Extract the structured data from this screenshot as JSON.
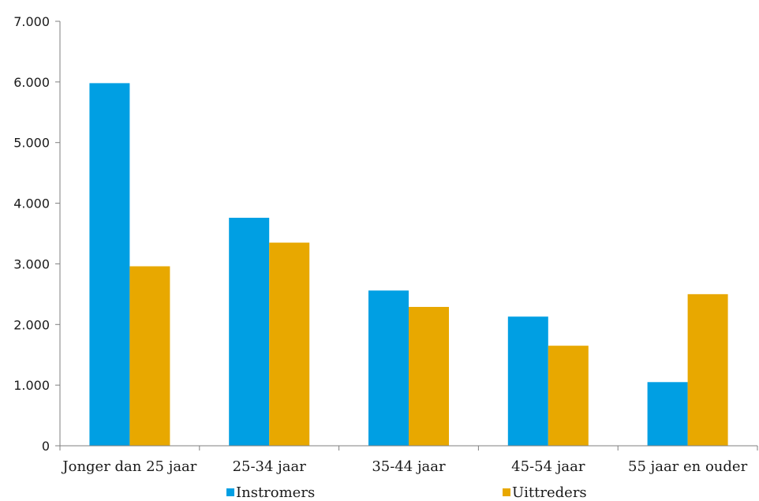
{
  "chart_data": {
    "type": "bar",
    "title": "",
    "xlabel": "",
    "ylabel": "",
    "categories": [
      "Jonger dan 25 jaar",
      "25-34 jaar",
      "35-44 jaar",
      "45-54 jaar",
      "55 jaar en ouder"
    ],
    "series": [
      {
        "name": "Instromers",
        "color": "#009fe3",
        "values": [
          5980,
          3760,
          2560,
          2130,
          1050
        ]
      },
      {
        "name": "Uittreders",
        "color": "#e8a800",
        "values": [
          2960,
          3350,
          2290,
          1650,
          2500
        ]
      }
    ],
    "ylim": [
      0,
      7000
    ],
    "yticks": [
      0,
      1000,
      2000,
      3000,
      4000,
      5000,
      6000,
      7000
    ],
    "ytick_labels": [
      "0",
      "1.000",
      "2.000",
      "3.000",
      "4.000",
      "5.000",
      "6.000",
      "7.000"
    ],
    "grid": false,
    "legend_position": "bottom"
  }
}
